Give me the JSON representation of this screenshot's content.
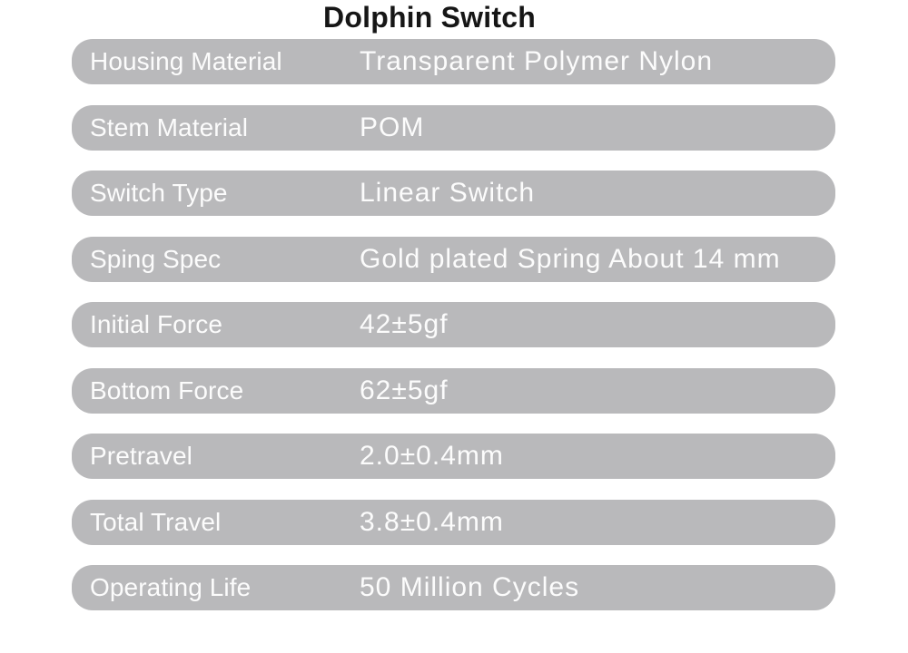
{
  "page": {
    "title": "Dolphin Switch"
  },
  "colors": {
    "page_bg": "#ffffff",
    "pill_bg": "#b9b9bb",
    "pill_text": "#fcfcfc",
    "title_color": "#161616"
  },
  "spec_table": {
    "rows": [
      {
        "label": "Housing Material",
        "value": "Transparent Polymer Nylon"
      },
      {
        "label": "Stem Material",
        "value": "POM"
      },
      {
        "label": "Switch Type",
        "value": "Linear Switch"
      },
      {
        "label": "Sping Spec",
        "value": "Gold plated Spring About 14 mm"
      },
      {
        "label": "Initial Force",
        "value": "42±5gf"
      },
      {
        "label": "Bottom Force",
        "value": "62±5gf"
      },
      {
        "label": "Pretravel",
        "value": "2.0±0.4mm"
      },
      {
        "label": "Total Travel",
        "value": "3.8±0.4mm"
      },
      {
        "label": "Operating Life",
        "value": "50 Million Cycles"
      }
    ]
  }
}
